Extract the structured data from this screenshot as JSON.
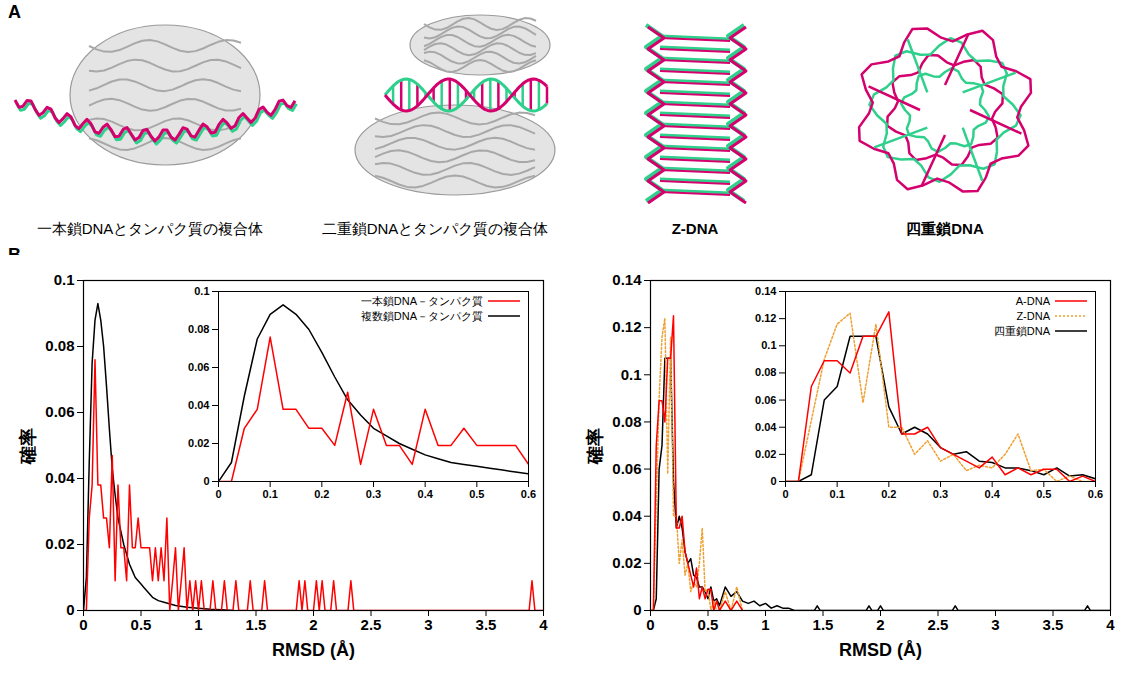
{
  "panel_a": {
    "letter": "A",
    "images": [
      {
        "label": "一本鎖DNAとタンパク質の複合体"
      },
      {
        "label": "二重鎖DNAとタンパク質の複合体"
      },
      {
        "label": "Z-DNA"
      },
      {
        "label": "四重鎖DNA"
      }
    ]
  },
  "panel_b": {
    "letter": "B"
  },
  "chart_data": [
    {
      "type": "line",
      "xlabel": "RMSD (Å)",
      "ylabel": "確率",
      "xlim": [
        0,
        4
      ],
      "xticks": [
        0,
        0.5,
        1,
        1.5,
        2,
        2.5,
        3,
        3.5,
        4
      ],
      "ylim": [
        0,
        0.1
      ],
      "yticks": [
        0,
        0.02,
        0.04,
        0.06,
        0.08,
        0.1
      ],
      "series": [
        {
          "name": "一本鎖DNA－タンパク質",
          "color": "#ff0000",
          "line_style": "solid",
          "x": [
            0,
            0.025,
            0.05,
            0.075,
            0.1,
            0.125,
            0.15,
            0.175,
            0.2,
            0.225,
            0.25,
            0.275,
            0.3,
            0.325,
            0.35,
            0.375,
            0.4,
            0.425,
            0.45,
            0.475,
            0.5,
            0.525,
            0.55,
            0.575,
            0.6,
            0.625,
            0.65,
            0.675,
            0.7,
            0.725,
            0.75,
            0.775,
            0.8,
            0.825,
            0.85,
            0.875,
            0.9,
            0.925,
            0.95,
            0.975,
            1.0,
            1.025,
            1.05,
            1.1,
            1.125,
            1.15,
            1.2,
            1.225,
            1.25,
            1.3,
            1.325,
            1.35,
            1.425,
            1.45,
            1.475,
            1.55,
            1.575,
            1.6,
            1.85,
            1.875,
            1.9,
            1.925,
            1.95,
            2.0,
            2.025,
            2.05,
            2.075,
            2.1,
            2.15,
            2.175,
            2.2,
            2.3,
            2.325,
            2.35,
            3.875,
            3.9,
            3.925,
            4.0
          ],
          "values": [
            0,
            0,
            0.028,
            0.038,
            0.076,
            0.038,
            0.038,
            0.028,
            0.028,
            0.019,
            0.047,
            0.009,
            0.038,
            0.019,
            0.019,
            0.009,
            0.038,
            0.019,
            0.019,
            0.028,
            0.019,
            0.019,
            0.019,
            0.019,
            0.009,
            0.019,
            0.009,
            0.019,
            0.009,
            0.028,
            0,
            0.009,
            0.019,
            0,
            0.009,
            0.019,
            0,
            0.009,
            0,
            0.009,
            0,
            0.009,
            0,
            0,
            0.009,
            0,
            0,
            0.009,
            0,
            0,
            0.009,
            0,
            0,
            0.009,
            0,
            0,
            0.009,
            0,
            0,
            0.009,
            0,
            0.009,
            0,
            0,
            0.009,
            0,
            0.009,
            0,
            0,
            0.009,
            0,
            0,
            0.009,
            0,
            0,
            0.009,
            0,
            0
          ]
        },
        {
          "name": "複数鎖DNA－タンパク質",
          "color": "#000000",
          "line_style": "solid",
          "x": [
            0,
            0.025,
            0.05,
            0.075,
            0.1,
            0.125,
            0.15,
            0.175,
            0.2,
            0.225,
            0.25,
            0.275,
            0.3,
            0.325,
            0.35,
            0.375,
            0.4,
            0.425,
            0.45,
            0.475,
            0.5,
            0.525,
            0.55,
            0.575,
            0.6,
            0.65,
            0.7,
            0.8,
            0.9,
            1.0,
            1.1,
            1.2,
            1.3
          ],
          "values": [
            0,
            0.01,
            0.045,
            0.075,
            0.088,
            0.093,
            0.088,
            0.08,
            0.068,
            0.055,
            0.043,
            0.035,
            0.028,
            0.024,
            0.02,
            0.017,
            0.014,
            0.012,
            0.01,
            0.009,
            0.008,
            0.007,
            0.006,
            0.005,
            0.004,
            0.003,
            0.0025,
            0.0015,
            0.001,
            0.0007,
            0.0004,
            0.0002,
            0
          ]
        }
      ],
      "inset": {
        "xlim": [
          0,
          0.6
        ],
        "xticks": [
          0,
          0.1,
          0.2,
          0.3,
          0.4,
          0.5,
          0.6
        ],
        "ylim": [
          0,
          0.1
        ],
        "yticks": [
          0,
          0.02,
          0.04,
          0.06,
          0.08,
          0.1
        ],
        "legend": "top-right"
      }
    },
    {
      "type": "line",
      "xlabel": "RMSD (Å)",
      "ylabel": "確率",
      "xlim": [
        0,
        4
      ],
      "xticks": [
        0,
        0.5,
        1,
        1.5,
        2,
        2.5,
        3,
        3.5,
        4
      ],
      "ylim": [
        0,
        0.14
      ],
      "yticks": [
        0,
        0.02,
        0.04,
        0.06,
        0.08,
        0.1,
        0.12,
        0.14
      ],
      "series": [
        {
          "name": "A-DNA",
          "color": "#ff0000",
          "line_style": "solid",
          "x": [
            0,
            0.025,
            0.05,
            0.075,
            0.1,
            0.125,
            0.15,
            0.175,
            0.2,
            0.225,
            0.25,
            0.275,
            0.3,
            0.325,
            0.35,
            0.375,
            0.4,
            0.425,
            0.45,
            0.475,
            0.5,
            0.525,
            0.55,
            0.575,
            0.6,
            0.65,
            0.7,
            0.75,
            0.8
          ],
          "values": [
            0,
            0,
            0.07,
            0.089,
            0.089,
            0.08,
            0.107,
            0.107,
            0.125,
            0.035,
            0.035,
            0.04,
            0.025,
            0.02,
            0.015,
            0.01,
            0.018,
            0.005,
            0.01,
            0.005,
            0.009,
            0.009,
            0,
            0.004,
            0,
            0.004,
            0,
            0.004,
            0
          ]
        },
        {
          "name": "Z-DNA",
          "color": "#f0a030",
          "line_style": "dotted",
          "x": [
            0,
            0.025,
            0.05,
            0.075,
            0.1,
            0.125,
            0.15,
            0.175,
            0.2,
            0.225,
            0.25,
            0.275,
            0.3,
            0.325,
            0.35,
            0.375,
            0.4,
            0.425,
            0.45,
            0.475,
            0.5,
            0.525,
            0.55,
            0.575,
            0.6,
            0.65,
            0.7,
            0.75,
            0.8
          ],
          "values": [
            0,
            0,
            0.045,
            0.09,
            0.116,
            0.124,
            0.058,
            0.116,
            0.04,
            0.04,
            0.02,
            0.03,
            0.015,
            0.02,
            0.008,
            0.012,
            0.01,
            0.02,
            0.035,
            0.008,
            0.009,
            0,
            0.004,
            0,
            0,
            0.008,
            0,
            0.01,
            0
          ]
        },
        {
          "name": "四重鎖DNA",
          "color": "#000000",
          "line_style": "solid",
          "x": [
            0,
            0.025,
            0.05,
            0.075,
            0.1,
            0.125,
            0.15,
            0.175,
            0.2,
            0.225,
            0.25,
            0.275,
            0.3,
            0.325,
            0.35,
            0.375,
            0.4,
            0.425,
            0.45,
            0.475,
            0.5,
            0.525,
            0.55,
            0.575,
            0.6,
            0.65,
            0.7,
            0.75,
            0.8,
            0.85,
            0.9,
            0.95,
            1.0,
            1.05,
            1.1,
            1.15,
            1.2,
            1.25,
            1.425,
            1.45,
            1.475,
            1.875,
            1.9,
            1.925,
            1.975,
            2.0,
            2.025,
            2.625,
            2.65,
            2.675,
            3.775,
            3.8,
            3.825,
            4.0
          ],
          "values": [
            0,
            0,
            0.005,
            0.06,
            0.07,
            0.107,
            0.107,
            0.107,
            0.055,
            0.035,
            0.04,
            0.035,
            0.025,
            0.02,
            0.022,
            0.015,
            0.014,
            0.01,
            0.01,
            0.008,
            0.005,
            0.01,
            0.004,
            0.005,
            0.002,
            0.01,
            0.006,
            0.008,
            0.004,
            0.003,
            0.004,
            0.002,
            0.003,
            0.001,
            0.002,
            0.001,
            0.001,
            0,
            0,
            0.002,
            0,
            0,
            0.002,
            0,
            0,
            0.002,
            0,
            0,
            0.002,
            0,
            0,
            0.002,
            0,
            0
          ]
        }
      ],
      "inset": {
        "xlim": [
          0,
          0.6
        ],
        "xticks": [
          0,
          0.1,
          0.2,
          0.3,
          0.4,
          0.5,
          0.6
        ],
        "ylim": [
          0,
          0.14
        ],
        "yticks": [
          0,
          0.02,
          0.04,
          0.06,
          0.08,
          0.1,
          0.12,
          0.14
        ],
        "legend": "top-right"
      }
    }
  ]
}
